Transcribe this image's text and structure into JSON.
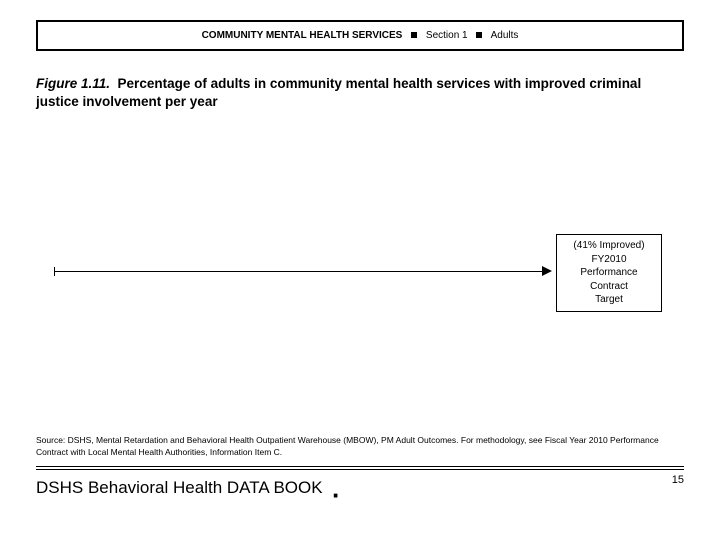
{
  "header": {
    "main": "COMMUNITY MENTAL HEALTH SERVICES",
    "section": "Section 1",
    "group": "Adults"
  },
  "figure": {
    "number": "Figure 1.11.",
    "caption": "Percentage of adults in community mental health services with improved criminal justice involvement per year"
  },
  "target_box": {
    "line1": "(41% Improved)",
    "line2": "FY2010",
    "line3": "Performance",
    "line4": "Contract",
    "line5": "Target"
  },
  "source": {
    "text": "Source: DSHS, Mental Retardation and Behavioral Health Outpatient Warehouse (MBOW), PM Adult Outcomes. For methodology, see Fiscal Year 2010 Performance Contract with Local Mental Health Authorities, Information Item C."
  },
  "footer": {
    "book": "DSHS Behavioral Health DATA BOOK",
    "page": "15"
  },
  "colors": {
    "text": "#000000",
    "background": "#ffffff",
    "border": "#000000"
  }
}
